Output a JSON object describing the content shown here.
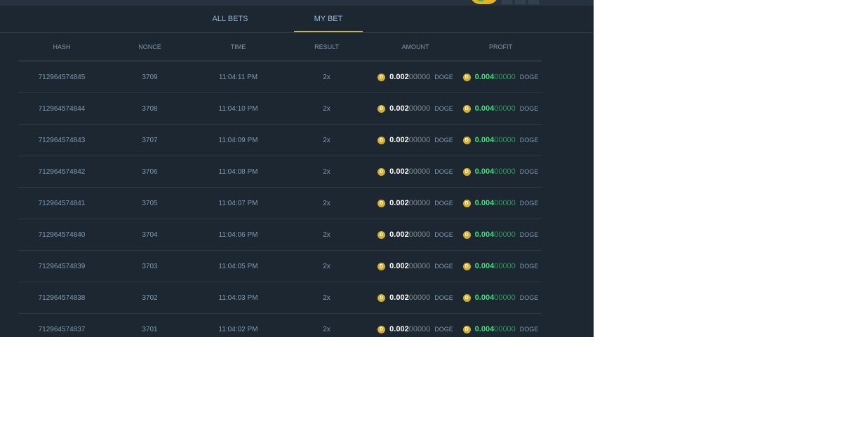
{
  "tabs": [
    "ALL BETS",
    "MY BET"
  ],
  "active_tab": "MY BET",
  "columns": [
    "HASH",
    "NONCE",
    "TIME",
    "RESULT",
    "AMOUNT",
    "PROFIT"
  ],
  "currency": "DOGE",
  "coin_icon": "D",
  "colors": {
    "accent": "#c9b34a",
    "profit": "#3fe07a",
    "coin": "#d6b02a"
  },
  "rows": [
    {
      "hash": "712964574845",
      "nonce": "3709",
      "time": "11:04:11 PM",
      "result": "2x",
      "amount_sig": "0.002",
      "amount_rest": "00000",
      "profit_sig": "0.004",
      "profit_rest": "00000"
    },
    {
      "hash": "712964574844",
      "nonce": "3708",
      "time": "11:04:10 PM",
      "result": "2x",
      "amount_sig": "0.002",
      "amount_rest": "00000",
      "profit_sig": "0.004",
      "profit_rest": "00000"
    },
    {
      "hash": "712964574843",
      "nonce": "3707",
      "time": "11:04:09 PM",
      "result": "2x",
      "amount_sig": "0.002",
      "amount_rest": "00000",
      "profit_sig": "0.004",
      "profit_rest": "00000"
    },
    {
      "hash": "712964574842",
      "nonce": "3706",
      "time": "11:04:08 PM",
      "result": "2x",
      "amount_sig": "0.002",
      "amount_rest": "00000",
      "profit_sig": "0.004",
      "profit_rest": "00000"
    },
    {
      "hash": "712964574841",
      "nonce": "3705",
      "time": "11:04:07 PM",
      "result": "2x",
      "amount_sig": "0.002",
      "amount_rest": "00000",
      "profit_sig": "0.004",
      "profit_rest": "00000"
    },
    {
      "hash": "712964574840",
      "nonce": "3704",
      "time": "11:04:06 PM",
      "result": "2x",
      "amount_sig": "0.002",
      "amount_rest": "00000",
      "profit_sig": "0.004",
      "profit_rest": "00000"
    },
    {
      "hash": "712964574839",
      "nonce": "3703",
      "time": "11:04:05 PM",
      "result": "2x",
      "amount_sig": "0.002",
      "amount_rest": "00000",
      "profit_sig": "0.004",
      "profit_rest": "00000"
    },
    {
      "hash": "712964574838",
      "nonce": "3702",
      "time": "11:04:03 PM",
      "result": "2x",
      "amount_sig": "0.002",
      "amount_rest": "00000",
      "profit_sig": "0.004",
      "profit_rest": "00000"
    },
    {
      "hash": "712964574837",
      "nonce": "3701",
      "time": "11:04:02 PM",
      "result": "2x",
      "amount_sig": "0.002",
      "amount_rest": "00000",
      "profit_sig": "0.004",
      "profit_rest": "00000"
    }
  ]
}
